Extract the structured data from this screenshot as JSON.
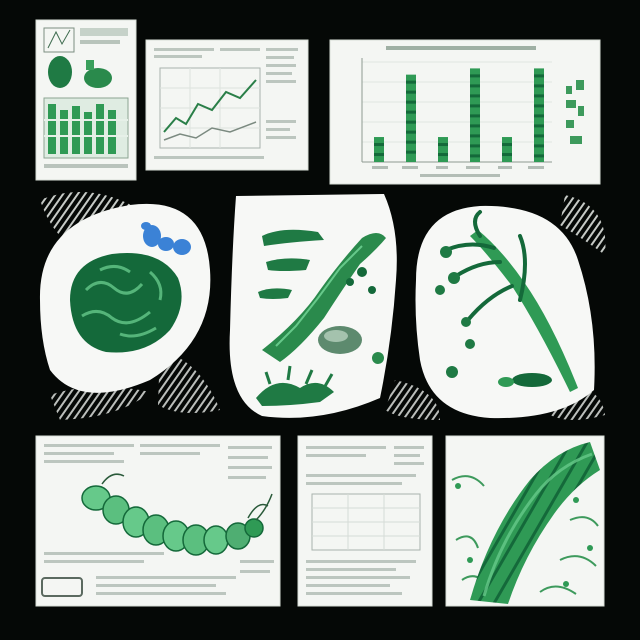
{
  "colors": {
    "background": "#050806",
    "paper": "#f4f6f3",
    "green_dark": "#14693a",
    "green_mid": "#2f9a55",
    "green_light": "#66c98a",
    "blue_accent": "#3b82d6",
    "text_line": "#9aa39c"
  },
  "items": {
    "top_left_sheet": "document-with-specimen-images",
    "top_center_sheet": "document-with-line-graph",
    "top_right_chart": "bar-chart-sheet",
    "left_blob": "coral-specimen",
    "center_blob": "seaweed-and-fossil-specimens",
    "right_blob": "branching-plant-specimen",
    "bottom_left_sheet": "caterpillar-illustration-sheet",
    "bottom_center_sheet": "text-document-sheet",
    "bottom_right_sheet": "segmented-stem-closeup"
  },
  "bar_chart": {
    "values": [
      0.12,
      0.42,
      0.12,
      0.45,
      0.12,
      0.45
    ]
  }
}
